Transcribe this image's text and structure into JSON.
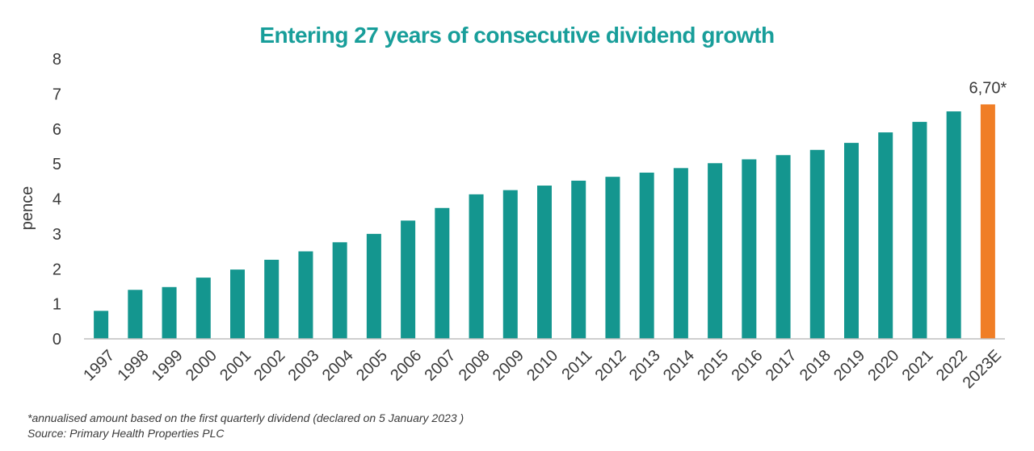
{
  "colors": {
    "title": "#189e9a",
    "bar": "#14968f",
    "highlight": "#f07e26",
    "text": "#3a3a3a",
    "axis": "#bfbfbf"
  },
  "chart_data": {
    "type": "bar",
    "title": "Entering 27 years of consecutive dividend growth",
    "xlabel": "",
    "ylabel": "pence",
    "ylim": [
      0,
      8
    ],
    "yticks": [
      "0",
      "1",
      "2",
      "3",
      "4",
      "5",
      "6",
      "7",
      "8"
    ],
    "grid": false,
    "categories": [
      "1997",
      "1998",
      "1999",
      "2000",
      "2001",
      "2002",
      "2003",
      "2004",
      "2005",
      "2006",
      "2007",
      "2008",
      "2009",
      "2010",
      "2011",
      "2012",
      "2013",
      "2014",
      "2015",
      "2016",
      "2017",
      "2018",
      "2019",
      "2020",
      "2021",
      "2022",
      "2023E"
    ],
    "values": [
      0.8,
      1.4,
      1.48,
      1.75,
      1.98,
      2.26,
      2.5,
      2.76,
      3.0,
      3.38,
      3.74,
      4.13,
      4.25,
      4.38,
      4.52,
      4.63,
      4.75,
      4.88,
      5.02,
      5.13,
      5.25,
      5.4,
      5.6,
      5.9,
      6.2,
      6.5,
      6.7
    ],
    "highlight_index": 26,
    "annotations": [
      {
        "category": "2023E",
        "text": "6,70*"
      }
    ]
  },
  "footnotes": {
    "note": "*annualised amount based on the first quarterly dividend (declared on 5 January 2023 )",
    "source": "Source: Primary Health Properties PLC"
  }
}
